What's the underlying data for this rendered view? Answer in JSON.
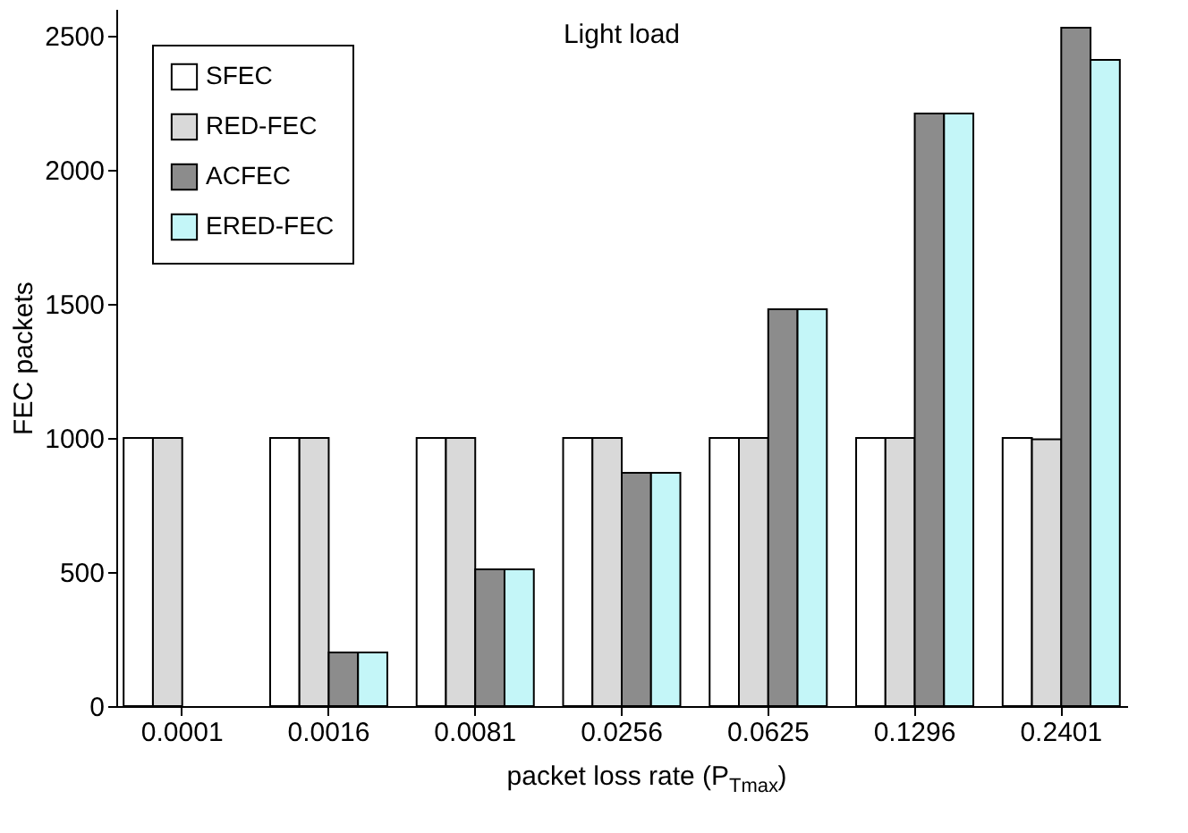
{
  "chart_data": {
    "type": "bar",
    "title": "Light load",
    "xlabel": "packet loss rate (P$_{Tmax}$)",
    "ylabel": "FEC packets",
    "categories": [
      "0.0001",
      "0.0016",
      "0.0081",
      "0.0256",
      "0.0625",
      "0.1296",
      "0.2401"
    ],
    "series": [
      {
        "name": "SFEC",
        "color": "#ffffff",
        "values": [
          1000,
          1000,
          1000,
          1000,
          1000,
          1000,
          1000
        ]
      },
      {
        "name": "RED-FEC",
        "color": "#d9d9d9",
        "values": [
          1000,
          1000,
          1000,
          1000,
          1000,
          1000,
          995
        ]
      },
      {
        "name": "ACFEC",
        "color": "#8c8c8c",
        "values": [
          0,
          200,
          510,
          870,
          1480,
          2210,
          2530
        ]
      },
      {
        "name": "ERED-FEC",
        "color": "#c4f6f8",
        "values": [
          0,
          200,
          510,
          870,
          1480,
          2210,
          2410
        ]
      }
    ],
    "ylim": [
      0,
      2600
    ],
    "yticks": [
      0,
      500,
      1000,
      1500,
      2000,
      2500
    ],
    "grid": false,
    "legend": "top left"
  }
}
